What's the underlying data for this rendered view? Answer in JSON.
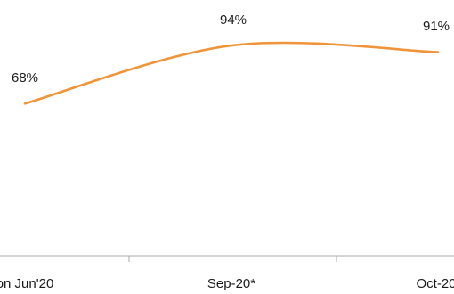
{
  "chart_data": {
    "type": "line",
    "categories": [
      "on Jun'20",
      "Sep-20*",
      "Oct-20"
    ],
    "series": [
      {
        "values": [
          68,
          94,
          91
        ],
        "labels": [
          "68%",
          "94%",
          "91%"
        ],
        "color": "#f0943a"
      }
    ],
    "ylim": [
      0,
      100
    ],
    "grid": false,
    "legend": "none"
  }
}
